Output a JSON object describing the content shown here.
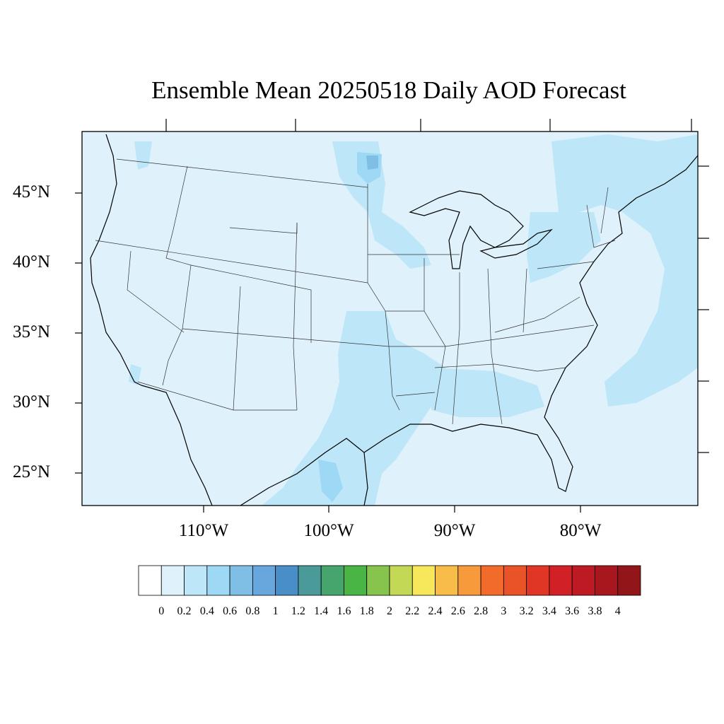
{
  "title": "Ensemble Mean 20250518 Daily AOD Forecast",
  "map": {
    "projection": "lat-lon",
    "region": "Contiguous United States",
    "lat_labels": [
      "45°N",
      "40°N",
      "35°N",
      "30°N",
      "25°N"
    ],
    "lon_labels": [
      "110°W",
      "100°W",
      "90°W",
      "80°W"
    ],
    "background_color": "#dff2fb"
  },
  "colorbar": {
    "labels": [
      "0",
      "0.2",
      "0.4",
      "0.6",
      "0.8",
      "1",
      "1.2",
      "1.4",
      "1.6",
      "1.8",
      "2",
      "2.2",
      "2.4",
      "2.6",
      "2.8",
      "3",
      "3.2",
      "3.4",
      "3.6",
      "3.8",
      "4"
    ],
    "colors": [
      "#ffffff",
      "#dff2fb",
      "#bde6f8",
      "#9dd8f4",
      "#7fbfe6",
      "#67a7dd",
      "#4a8ec8",
      "#4a9a9a",
      "#45a56d",
      "#49b544",
      "#86c44e",
      "#c3d956",
      "#f7e75a",
      "#f7bd48",
      "#f79a3c",
      "#f36b2a",
      "#ea5227",
      "#e03625",
      "#d22027",
      "#bd1a23",
      "#a8171e",
      "#92151a"
    ]
  }
}
